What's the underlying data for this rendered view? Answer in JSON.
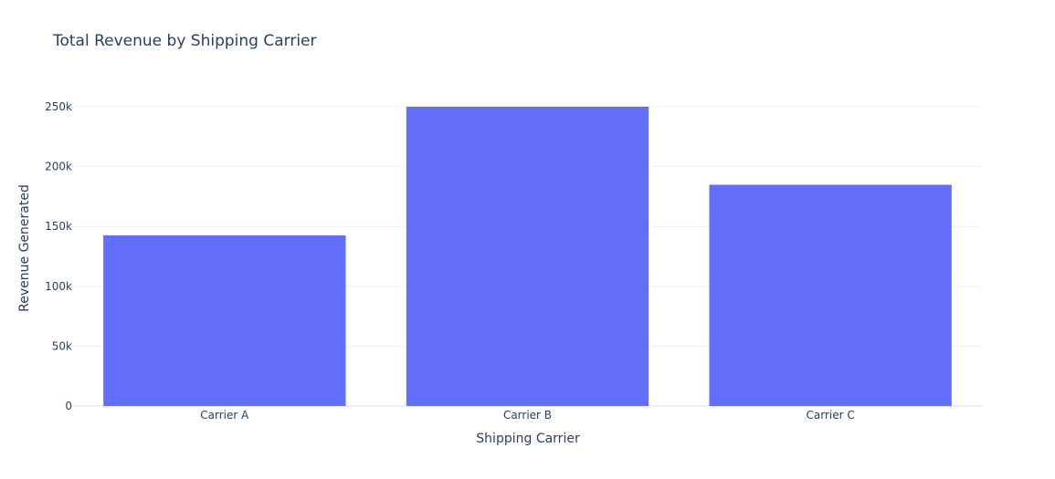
{
  "chart_data": {
    "type": "bar",
    "title": "Total Revenue by Shipping Carrier",
    "xlabel": "Shipping Carrier",
    "ylabel": "Revenue Generated",
    "categories": [
      "Carrier A",
      "Carrier B",
      "Carrier C"
    ],
    "values": [
      142600,
      250100,
      184900
    ],
    "ylim": [
      0,
      263000
    ],
    "yticks": [
      0,
      50000,
      100000,
      150000,
      200000,
      250000
    ],
    "ytick_labels": [
      "0",
      "50k",
      "100k",
      "150k",
      "200k",
      "250k"
    ],
    "bar_color": "#636efa",
    "grid": true,
    "legend": "none"
  }
}
